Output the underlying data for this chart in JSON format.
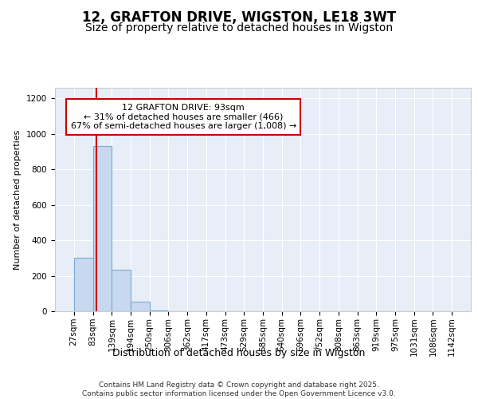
{
  "title": "12, GRAFTON DRIVE, WIGSTON, LE18 3WT",
  "subtitle": "Size of property relative to detached houses in Wigston",
  "xlabel": "Distribution of detached houses by size in Wigston",
  "ylabel": "Number of detached properties",
  "bin_edges": [
    27,
    83,
    139,
    194,
    250,
    306,
    362,
    417,
    473,
    529,
    585,
    640,
    696,
    752,
    808,
    863,
    919,
    975,
    1031,
    1086,
    1142
  ],
  "bar_heights": [
    300,
    930,
    235,
    55,
    5,
    0,
    0,
    0,
    0,
    0,
    0,
    0,
    0,
    0,
    0,
    0,
    0,
    0,
    0,
    0
  ],
  "bar_color": "#c8d8f0",
  "bar_edge_color": "#7aabcf",
  "property_line_x": 93,
  "property_line_color": "#cc0000",
  "annotation_text": "12 GRAFTON DRIVE: 93sqm\n← 31% of detached houses are smaller (466)\n67% of semi-detached houses are larger (1,008) →",
  "annotation_box_color": "#cc0000",
  "ylim": [
    0,
    1260
  ],
  "yticks": [
    0,
    200,
    400,
    600,
    800,
    1000,
    1200
  ],
  "background_color": "#e8eef8",
  "grid_color": "#ffffff",
  "footer_text": "Contains HM Land Registry data © Crown copyright and database right 2025.\nContains public sector information licensed under the Open Government Licence v3.0.",
  "title_fontsize": 12,
  "subtitle_fontsize": 10,
  "xlabel_fontsize": 9,
  "ylabel_fontsize": 8,
  "tick_fontsize": 7.5,
  "annotation_fontsize": 8,
  "footer_fontsize": 6.5
}
